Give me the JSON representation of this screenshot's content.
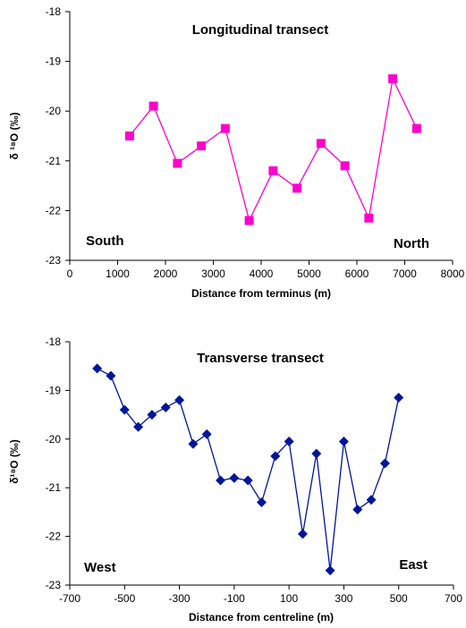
{
  "chart_data": [
    {
      "type": "line",
      "title": "Longitudinal transect",
      "xlabel": "Distance from terminus (m)",
      "ylabel": "δ ¹⁸O (‰)",
      "xlim": [
        0,
        8000
      ],
      "ylim": [
        -23,
        -18
      ],
      "x_ticks": [
        0,
        1000,
        2000,
        3000,
        4000,
        5000,
        6000,
        7000,
        8000
      ],
      "y_ticks": [
        -18,
        -19,
        -20,
        -21,
        -22,
        -23
      ],
      "annotations": {
        "left": "South",
        "right": "North"
      },
      "grid": false,
      "legend": "none",
      "marker": "square",
      "color": "#ff00cc",
      "series": [
        {
          "x": [
            1250,
            1750,
            2250,
            2750,
            3250,
            3750,
            4250,
            4750,
            5250,
            5750,
            6250,
            6750,
            7250
          ],
          "values": [
            -20.5,
            -19.9,
            -21.05,
            -20.7,
            -20.35,
            -22.2,
            -21.2,
            -21.55,
            -20.65,
            -21.1,
            -22.15,
            -19.35,
            -20.35
          ]
        }
      ]
    },
    {
      "type": "line",
      "title": "Transverse transect",
      "xlabel": "Distance from centreline (m)",
      "ylabel": "δ¹⁸O (‰)",
      "xlim": [
        -700,
        700
      ],
      "ylim": [
        -23,
        -18
      ],
      "x_ticks": [
        -700,
        -500,
        -300,
        -100,
        100,
        300,
        500,
        700
      ],
      "y_ticks": [
        -18,
        -19,
        -20,
        -21,
        -22,
        -23
      ],
      "annotations": {
        "left": "West",
        "right": "East"
      },
      "grid": false,
      "legend": "none",
      "marker": "diamond",
      "color": "#00159a",
      "series": [
        {
          "x": [
            -600,
            -550,
            -500,
            -450,
            -400,
            -350,
            -300,
            -250,
            -200,
            -150,
            -100,
            -50,
            0,
            50,
            100,
            150,
            200,
            250,
            300,
            350,
            400,
            450,
            500
          ],
          "values": [
            -18.55,
            -18.7,
            -19.4,
            -19.75,
            -19.5,
            -19.35,
            -19.2,
            -20.1,
            -19.9,
            -20.85,
            -20.8,
            -20.85,
            -21.3,
            -20.35,
            -20.05,
            -21.95,
            -20.3,
            -22.7,
            -20.05,
            -21.45,
            -21.25,
            -20.5,
            -19.15
          ]
        }
      ]
    }
  ]
}
